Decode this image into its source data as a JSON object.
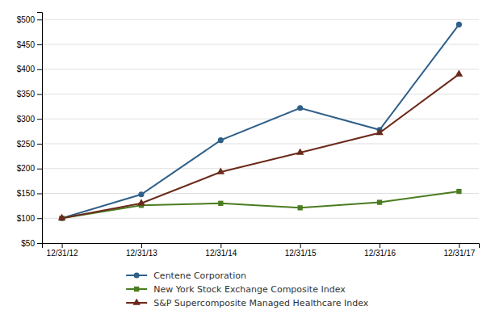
{
  "chart_data": {
    "type": "line",
    "categories": [
      "12/31/12",
      "12/31/13",
      "12/31/14",
      "12/31/15",
      "12/31/16",
      "12/31/17"
    ],
    "series": [
      {
        "name": "Centene Corporation",
        "color": "#2e5f8a",
        "marker": "circle",
        "values": [
          100,
          148,
          257,
          322,
          278,
          490
        ]
      },
      {
        "name": "New York Stock Exchange Composite Index",
        "color": "#4a7c20",
        "marker": "square",
        "values": [
          100,
          126,
          130,
          121,
          132,
          154
        ]
      },
      {
        "name": "S&P Supercomposite Managed Healthcare Index",
        "color": "#6b2a1a",
        "marker": "triangle",
        "values": [
          100,
          130,
          193,
          232,
          272,
          390
        ]
      }
    ],
    "ylim": [
      50,
      515
    ],
    "yticks": [
      {
        "value": 50,
        "label": "$50"
      },
      {
        "value": 100,
        "label": "$100"
      },
      {
        "value": 150,
        "label": "$150"
      },
      {
        "value": 200,
        "label": "$200"
      },
      {
        "value": 250,
        "label": "$250"
      },
      {
        "value": 300,
        "label": "$300"
      },
      {
        "value": 350,
        "label": "$350"
      },
      {
        "value": 400,
        "label": "$400"
      },
      {
        "value": 450,
        "label": "$450"
      },
      {
        "value": 500,
        "label": "$500"
      }
    ],
    "grid": true,
    "legend": "bottom"
  }
}
